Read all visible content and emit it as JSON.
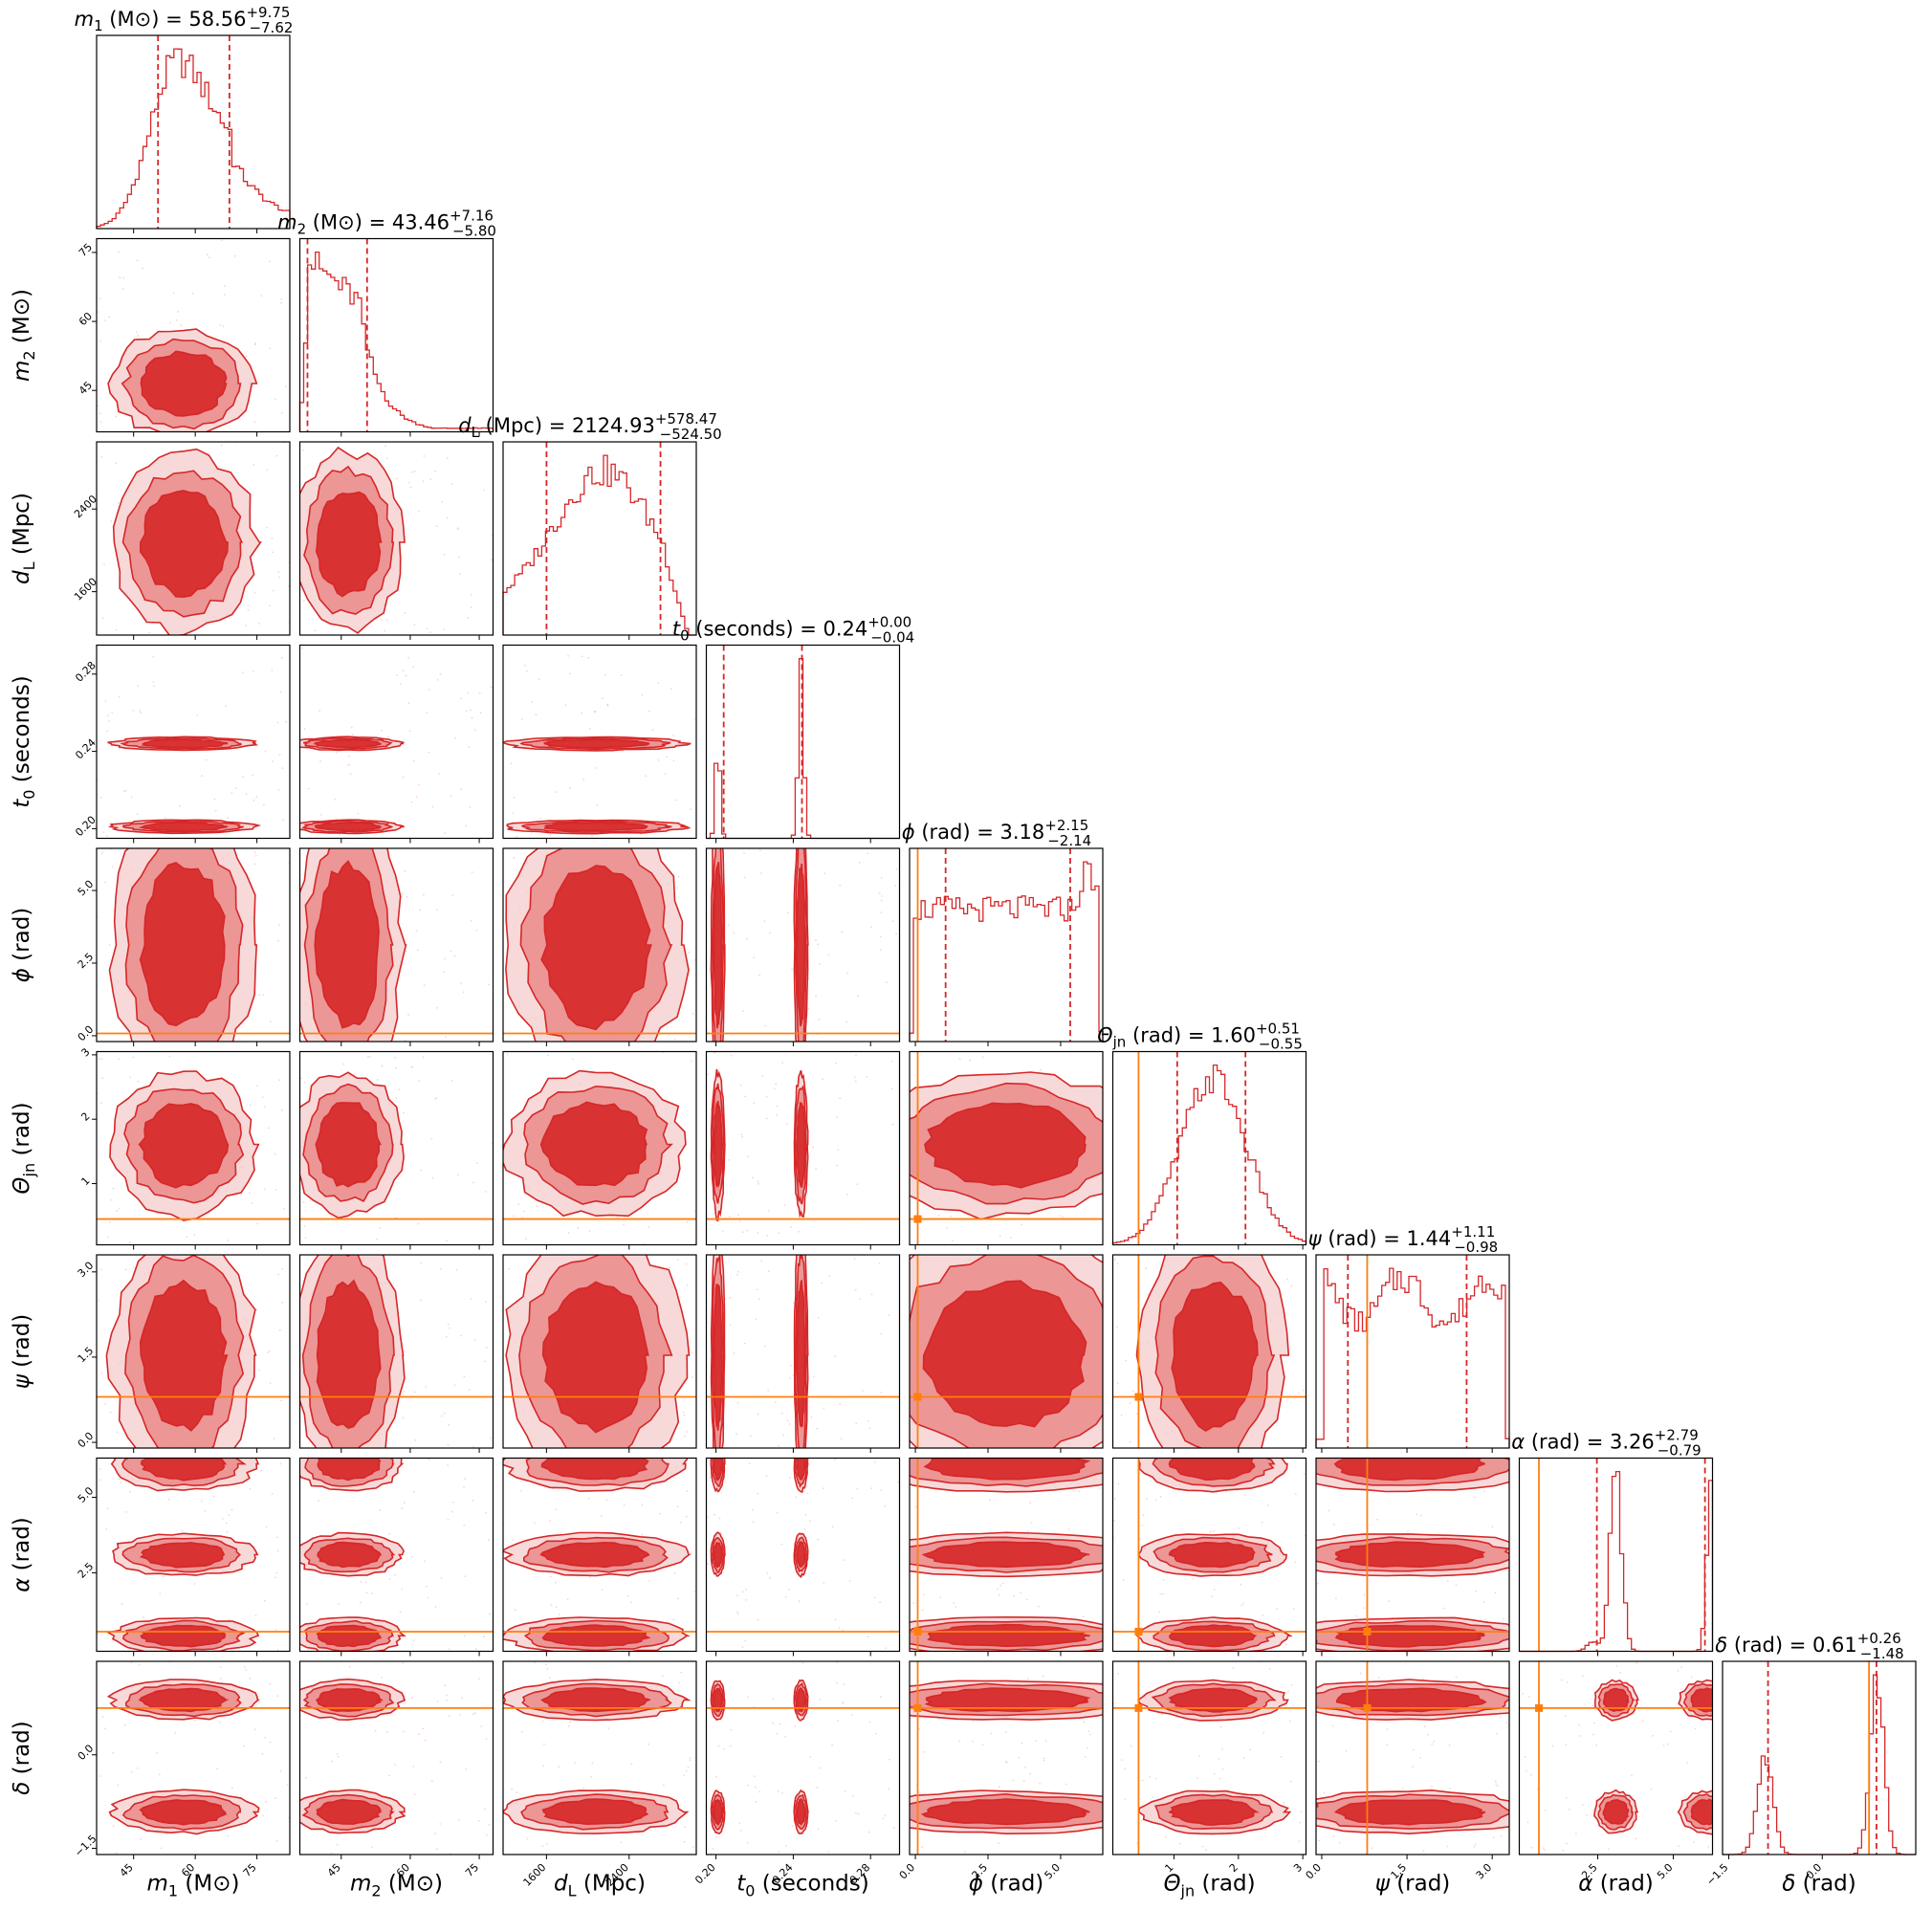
{
  "chart_data": {
    "type": "corner",
    "colors": {
      "posterior": "#d62728",
      "truth": "#ff7f0e"
    },
    "parameters": [
      {
        "key": "m1",
        "label": "m_1 (M_sun)",
        "label_main": "m",
        "label_sub": "1",
        "label_unit": "(M⊙)",
        "title_value": "58.56",
        "title_plus": "+9.75",
        "title_minus": "−7.62",
        "median": 58.56,
        "lo": 50.94,
        "hi": 68.31,
        "range": [
          36,
          83
        ],
        "ticks": [
          45,
          60,
          75
        ],
        "tick_labels": [
          "45",
          "60",
          "75"
        ],
        "hist_shape": "skew"
      },
      {
        "key": "m2",
        "label": "m_2 (M_sun)",
        "label_main": "m",
        "label_sub": "2",
        "label_unit": "(M⊙)",
        "title_value": "43.46",
        "title_plus": "+7.16",
        "title_minus": "−5.80",
        "median": 43.46,
        "lo": 37.66,
        "hi": 50.62,
        "range": [
          36,
          78
        ],
        "ticks": [
          45,
          60,
          75
        ],
        "tick_labels": [
          "45",
          "60",
          "75"
        ],
        "hist_shape": "decay"
      },
      {
        "key": "dL",
        "label": "d_L (Mpc)",
        "label_main": "d",
        "label_sub": "L",
        "label_unit": "(Mpc)",
        "title_value": "2124.93",
        "title_plus": "+578.47",
        "title_minus": "−524.50",
        "median": 2124.93,
        "lo": 1600.43,
        "hi": 2703.4,
        "range": [
          1180,
          3050
        ],
        "ticks": [
          1600,
          2400
        ],
        "tick_labels": [
          "1600",
          "2400"
        ],
        "hist_shape": "broad"
      },
      {
        "key": "t0",
        "label": "t_0 (seconds)",
        "label_main": "t",
        "label_sub": "0",
        "label_unit": "(seconds)",
        "title_value": "0.24",
        "title_plus": "+0.00",
        "title_minus": "−0.04",
        "median": 0.24,
        "lo": 0.204,
        "hi": 0.2445,
        "range": [
          0.195,
          0.295
        ],
        "ticks": [
          0.2,
          0.24,
          0.28
        ],
        "tick_labels": [
          "0.20",
          "0.24",
          "0.28"
        ],
        "hist_shape": "t0"
      },
      {
        "key": "phi",
        "label": "phi (rad)",
        "label_main": "ϕ",
        "label_sub": "",
        "label_unit": "(rad)",
        "title_value": "3.18",
        "title_plus": "+2.15",
        "title_minus": "−2.14",
        "median": 3.18,
        "lo": 1.04,
        "hi": 5.33,
        "range": [
          -0.2,
          6.45
        ],
        "ticks": [
          0,
          2.5,
          5
        ],
        "tick_labels": [
          "0.0",
          "2.5",
          "5.0"
        ],
        "hist_shape": "flat",
        "truth": 0.08
      },
      {
        "key": "theta",
        "label": "Theta_jn (rad)",
        "label_main": "Θ",
        "label_sub": "jn",
        "label_unit": "(rad)",
        "title_value": "1.60",
        "title_plus": "+0.51",
        "title_minus": "−0.55",
        "median": 1.6,
        "lo": 1.05,
        "hi": 2.11,
        "range": [
          0.05,
          3.05
        ],
        "ticks": [
          1,
          2,
          3
        ],
        "tick_labels": [
          "1",
          "2",
          "3"
        ],
        "hist_shape": "gauss",
        "truth": 0.45
      },
      {
        "key": "psi",
        "label": "psi (rad)",
        "label_main": "ψ",
        "label_sub": "",
        "label_unit": "(rad)",
        "title_value": "1.44",
        "title_plus": "+1.11",
        "title_minus": "−0.98",
        "median": 1.44,
        "lo": 0.46,
        "hi": 2.55,
        "range": [
          -0.1,
          3.3
        ],
        "ticks": [
          0,
          1.5,
          3
        ],
        "tick_labels": [
          "0.0",
          "1.5",
          "3.0"
        ],
        "hist_shape": "wave",
        "truth": 0.8
      },
      {
        "key": "alpha",
        "label": "alpha (rad)",
        "label_main": "α",
        "label_sub": "",
        "label_unit": "(rad)",
        "title_value": "3.26",
        "title_plus": "+2.79",
        "title_minus": "−0.79",
        "median": 3.26,
        "lo": 2.47,
        "hi": 6.05,
        "range": [
          -0.1,
          6.3
        ],
        "ticks": [
          2.5,
          5
        ],
        "tick_labels": [
          "2.5",
          "5.0"
        ],
        "hist_shape": "alpha",
        "truth": 0.55
      },
      {
        "key": "delta",
        "label": "delta (rad)",
        "label_main": "δ",
        "label_sub": "",
        "label_unit": "(rad)",
        "title_value": "0.61",
        "title_plus": "+0.26",
        "title_minus": "−1.48",
        "median": 0.61,
        "lo": -0.87,
        "hi": 0.87,
        "range": [
          -1.6,
          1.5
        ],
        "ticks": [
          -1.5,
          0
        ],
        "tick_labels": [
          "−1.5",
          "0.0"
        ],
        "hist_shape": "delta",
        "truth": 0.75
      }
    ]
  }
}
